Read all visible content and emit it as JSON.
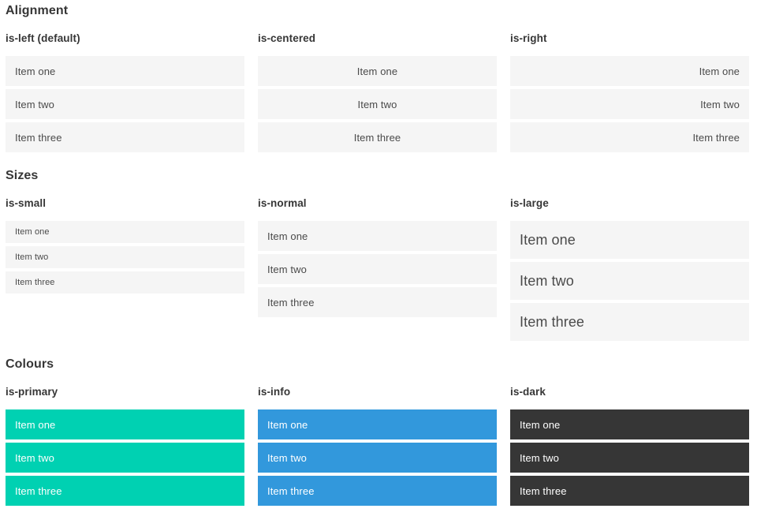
{
  "colors": {
    "primary": "#00d1b2",
    "info": "#3298dc",
    "dark": "#363636",
    "item_bg": "#f5f5f5",
    "item_text": "#4a4a4a",
    "item_text_on_color": "#ffffff",
    "heading_text": "#363636"
  },
  "sections": [
    {
      "title": "Alignment",
      "columns": [
        {
          "heading": "is-left (default)",
          "variant": "align-left",
          "items": [
            "Item one",
            "Item two",
            "Item three"
          ]
        },
        {
          "heading": "is-centered",
          "variant": "align-center",
          "items": [
            "Item one",
            "Item two",
            "Item three"
          ]
        },
        {
          "heading": "is-right",
          "variant": "align-right",
          "items": [
            "Item one",
            "Item two",
            "Item three"
          ]
        }
      ]
    },
    {
      "title": "Sizes",
      "columns": [
        {
          "heading": "is-small",
          "variant": "size-small",
          "items": [
            "Item one",
            "Item two",
            "Item three"
          ]
        },
        {
          "heading": "is-normal",
          "variant": "size-normal",
          "items": [
            "Item one",
            "Item two",
            "Item three"
          ]
        },
        {
          "heading": "is-large",
          "variant": "size-large",
          "items": [
            "Item one",
            "Item two",
            "Item three"
          ]
        }
      ]
    },
    {
      "title": "Colours",
      "columns": [
        {
          "heading": "is-primary",
          "variant": "color-primary",
          "items": [
            "Item one",
            "Item two",
            "Item three"
          ]
        },
        {
          "heading": "is-info",
          "variant": "color-info",
          "items": [
            "Item one",
            "Item two",
            "Item three"
          ]
        },
        {
          "heading": "is-dark",
          "variant": "color-dark",
          "items": [
            "Item one",
            "Item two",
            "Item three"
          ]
        }
      ]
    }
  ]
}
